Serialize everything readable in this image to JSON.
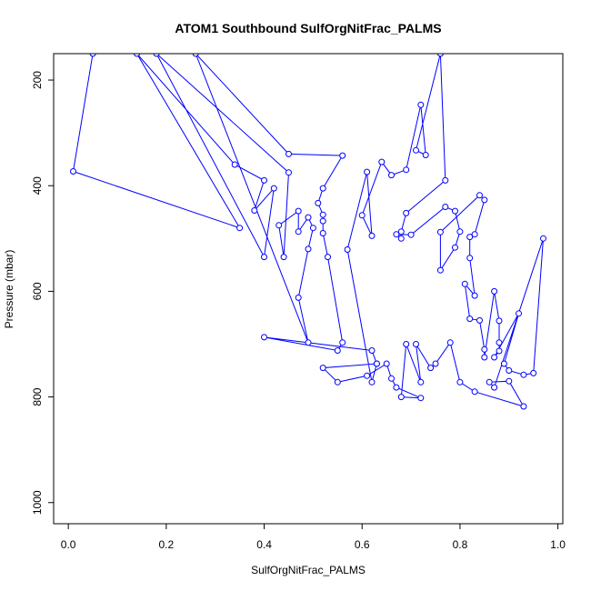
{
  "chart_data": {
    "type": "scatter",
    "title": "ATOM1 Southbound SulfOrgNitFrac_PALMS",
    "xlabel": "SulfOrgNitFrac_PALMS",
    "ylabel": "Pressure (mbar)",
    "xlim": [
      -0.03,
      1.01
    ],
    "ylim": [
      1040,
      150
    ],
    "y_reversed": true,
    "grid": false,
    "x_ticks": [
      0.0,
      0.2,
      0.4,
      0.6,
      0.8,
      1.0
    ],
    "x_tick_labels": [
      "0.0",
      "0.2",
      "0.4",
      "0.6",
      "0.8",
      "1.0"
    ],
    "y_ticks": [
      200,
      400,
      600,
      800,
      1000
    ],
    "y_tick_labels": [
      "200",
      "400",
      "600",
      "800",
      "1000"
    ],
    "colors": {
      "series": "#0000ff",
      "axis": "#000000",
      "background": "#ffffff"
    },
    "series": [
      {
        "style": "points-and-lines",
        "points": [
          [
            0.05,
            150
          ],
          [
            0.01,
            373
          ],
          [
            0.35,
            480
          ],
          [
            0.14,
            150
          ],
          [
            0.34,
            360
          ],
          [
            0.4,
            390
          ],
          [
            0.38,
            447
          ],
          [
            0.42,
            405
          ],
          [
            0.4,
            535
          ],
          [
            0.18,
            150
          ],
          [
            0.45,
            375
          ],
          [
            0.44,
            535
          ],
          [
            0.43,
            475
          ],
          [
            0.47,
            448
          ],
          [
            0.47,
            487
          ],
          [
            0.49,
            460
          ],
          [
            0.5,
            480
          ],
          [
            0.49,
            520
          ],
          [
            0.47,
            612
          ],
          [
            0.49,
            697
          ],
          [
            0.26,
            150
          ],
          [
            0.45,
            340
          ],
          [
            0.56,
            343
          ],
          [
            0.52,
            405
          ],
          [
            0.51,
            433
          ],
          [
            0.52,
            455
          ],
          [
            0.52,
            467
          ],
          [
            0.52,
            490
          ],
          [
            0.53,
            535
          ],
          [
            0.56,
            697
          ],
          [
            0.55,
            712
          ],
          [
            0.4,
            687
          ],
          [
            0.62,
            712
          ],
          [
            0.63,
            737
          ],
          [
            0.62,
            772
          ],
          [
            0.57,
            521
          ],
          [
            0.61,
            374
          ],
          [
            0.62,
            495
          ],
          [
            0.6,
            456
          ],
          [
            0.64,
            355
          ],
          [
            0.66,
            380
          ],
          [
            0.69,
            370
          ],
          [
            0.72,
            247
          ],
          [
            0.73,
            342
          ],
          [
            0.71,
            333
          ],
          [
            0.76,
            150
          ],
          [
            0.77,
            390
          ],
          [
            0.69,
            452
          ],
          [
            0.68,
            487
          ],
          [
            0.68,
            500
          ],
          [
            0.67,
            492
          ],
          [
            0.7,
            493
          ],
          [
            0.77,
            440
          ],
          [
            0.79,
            448
          ],
          [
            0.8,
            487
          ],
          [
            0.79,
            517
          ],
          [
            0.76,
            560
          ],
          [
            0.76,
            488
          ],
          [
            0.84,
            418
          ],
          [
            0.85,
            427
          ],
          [
            0.83,
            492
          ],
          [
            0.82,
            497
          ],
          [
            0.82,
            537
          ],
          [
            0.83,
            608
          ],
          [
            0.81,
            586
          ],
          [
            0.82,
            652
          ],
          [
            0.84,
            655
          ],
          [
            0.85,
            710
          ],
          [
            0.85,
            725
          ],
          [
            0.87,
            600
          ],
          [
            0.88,
            656
          ],
          [
            0.88,
            697
          ],
          [
            0.88,
            713
          ],
          [
            0.87,
            725
          ],
          [
            0.92,
            642
          ],
          [
            0.89,
            737
          ],
          [
            0.9,
            750
          ],
          [
            0.93,
            758
          ],
          [
            0.95,
            755
          ],
          [
            0.97,
            500
          ],
          [
            0.87,
            782
          ],
          [
            0.86,
            772
          ],
          [
            0.9,
            770
          ],
          [
            0.93,
            818
          ],
          [
            0.83,
            790
          ],
          [
            0.8,
            772
          ],
          [
            0.78,
            697
          ],
          [
            0.75,
            737
          ],
          [
            0.74,
            745
          ],
          [
            0.71,
            700
          ],
          [
            0.72,
            772
          ],
          [
            0.69,
            700
          ],
          [
            0.68,
            800
          ],
          [
            0.72,
            802
          ],
          [
            0.67,
            782
          ],
          [
            0.66,
            765
          ],
          [
            0.65,
            737
          ],
          [
            0.61,
            760
          ],
          [
            0.55,
            772
          ],
          [
            0.52,
            745
          ],
          [
            0.63,
            737
          ]
        ]
      }
    ]
  }
}
